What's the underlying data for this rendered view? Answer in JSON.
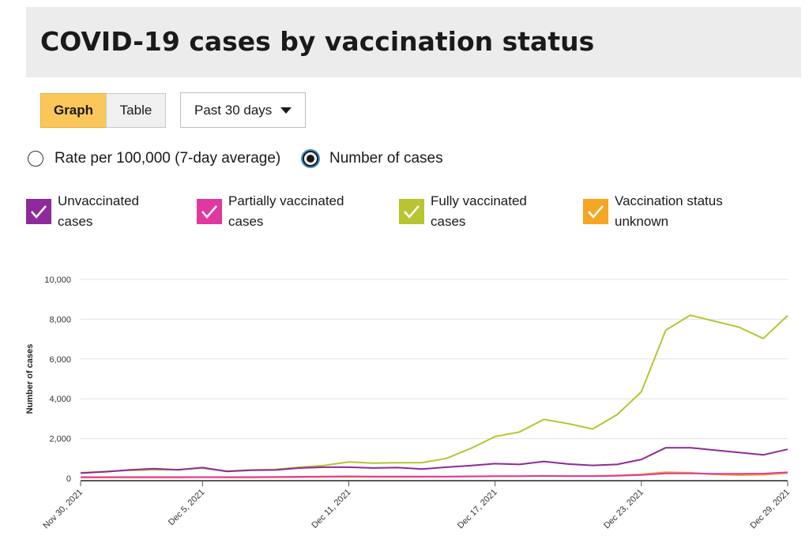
{
  "header": {
    "title": "COVID-19 cases by vaccination status"
  },
  "controls": {
    "graph_label": "Graph",
    "table_label": "Table",
    "period_label": "Past 30 days",
    "radio_rate": "Rate per 100,000 (7-day average)",
    "radio_number": "Number of cases"
  },
  "legend": [
    {
      "line1": "Unvaccinated",
      "line2": "cases",
      "color": "#8e2a99"
    },
    {
      "line1": "Partially vaccinated",
      "line2": "cases",
      "color": "#e0389f"
    },
    {
      "line1": "Fully vaccinated",
      "line2": "cases",
      "color": "#b8c431"
    },
    {
      "line1": "Vaccination status",
      "line2": "unknown",
      "color": "#f5a623"
    }
  ],
  "chart_data": {
    "type": "line",
    "ylabel": "Number of cases",
    "ylim": [
      0,
      10000
    ],
    "yticks": [
      "0",
      "2,000",
      "4,000",
      "6,000",
      "8,000",
      "10,000"
    ],
    "ytick_values": [
      0,
      2000,
      4000,
      6000,
      8000,
      10000
    ],
    "xticks": [
      {
        "label": "Nov 30, 2021",
        "index": 0
      },
      {
        "label": "Dec 5, 2021",
        "index": 5
      },
      {
        "label": "Dec 11, 2021",
        "index": 11
      },
      {
        "label": "Dec 17, 2021",
        "index": 17
      },
      {
        "label": "Dec 23, 2021",
        "index": 23
      },
      {
        "label": "Dec 29, 2021",
        "index": 29
      }
    ],
    "grid": true,
    "series": [
      {
        "name": "Fully vaccinated cases",
        "color": "#b8c431",
        "values": [
          280,
          340,
          400,
          430,
          440,
          510,
          360,
          420,
          450,
          560,
          650,
          820,
          760,
          780,
          790,
          1000,
          1500,
          2100,
          2330,
          2960,
          2750,
          2480,
          3200,
          4350,
          7450,
          8200,
          7900,
          7600,
          7030,
          8180
        ]
      },
      {
        "name": "Unvaccinated cases",
        "color": "#8e2a99",
        "values": [
          260,
          330,
          420,
          490,
          430,
          540,
          350,
          410,
          420,
          520,
          560,
          560,
          520,
          540,
          470,
          560,
          640,
          740,
          700,
          850,
          720,
          650,
          700,
          950,
          1540,
          1540,
          1420,
          1300,
          1180,
          1460
        ]
      },
      {
        "name": "Vaccination status unknown",
        "color": "#f5a623",
        "values": [
          40,
          40,
          40,
          40,
          40,
          50,
          40,
          40,
          50,
          60,
          70,
          70,
          70,
          70,
          70,
          80,
          90,
          100,
          110,
          130,
          120,
          120,
          150,
          200,
          310,
          280,
          200,
          160,
          180,
          260
        ]
      },
      {
        "name": "Partially vaccinated cases",
        "color": "#e0389f",
        "values": [
          60,
          60,
          60,
          60,
          60,
          60,
          60,
          60,
          70,
          80,
          90,
          100,
          90,
          90,
          90,
          90,
          100,
          110,
          110,
          120,
          110,
          110,
          130,
          170,
          250,
          250,
          230,
          230,
          240,
          300
        ]
      }
    ]
  }
}
